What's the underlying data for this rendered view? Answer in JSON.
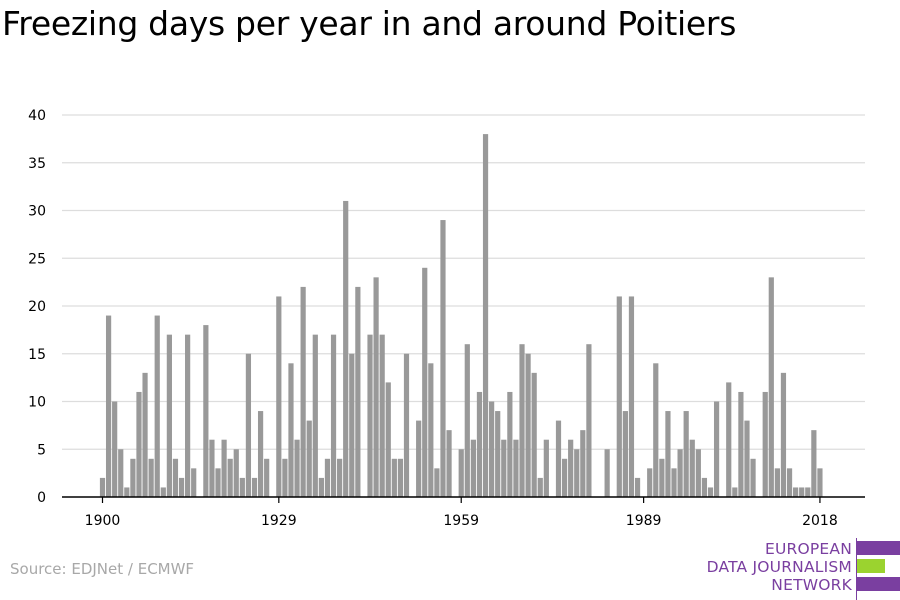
{
  "title": "Freezing days per year in and around Poitiers",
  "source": "Source: EDJNet / ECMWF",
  "logo": {
    "line1": "EUROPEAN",
    "line2": "DATA JOURNALISM",
    "line3": "NETWORK",
    "colors": {
      "text": "#7a3fa0",
      "bar_top": "#7a3fa0",
      "bar_mid": "#9bd32f",
      "bar_bottom": "#7a3fa0"
    }
  },
  "colors": {
    "bar": "#999999",
    "grid": "#dddddd",
    "axis": "#000000"
  },
  "chart_data": {
    "type": "bar",
    "title": "Freezing days per year in and around Poitiers",
    "xlabel": "",
    "ylabel": "",
    "ylim": [
      0,
      40
    ],
    "yticks": [
      "0",
      "5",
      "10",
      "15",
      "20",
      "25",
      "30",
      "35",
      "40"
    ],
    "xticks": [
      "1900",
      "1929",
      "1959",
      "1989",
      "2018"
    ],
    "grid": true,
    "x": [
      1900,
      1901,
      1902,
      1903,
      1904,
      1905,
      1906,
      1907,
      1908,
      1909,
      1910,
      1911,
      1912,
      1913,
      1914,
      1915,
      1916,
      1917,
      1918,
      1919,
      1920,
      1921,
      1922,
      1923,
      1924,
      1925,
      1926,
      1927,
      1928,
      1929,
      1930,
      1931,
      1932,
      1933,
      1934,
      1935,
      1936,
      1937,
      1938,
      1939,
      1940,
      1941,
      1942,
      1943,
      1944,
      1945,
      1946,
      1947,
      1948,
      1949,
      1950,
      1951,
      1952,
      1953,
      1954,
      1955,
      1956,
      1957,
      1958,
      1959,
      1960,
      1961,
      1962,
      1963,
      1964,
      1965,
      1966,
      1967,
      1968,
      1969,
      1970,
      1971,
      1972,
      1973,
      1974,
      1975,
      1976,
      1977,
      1978,
      1979,
      1980,
      1981,
      1982,
      1983,
      1984,
      1985,
      1986,
      1987,
      1988,
      1989,
      1990,
      1991,
      1992,
      1993,
      1994,
      1995,
      1996,
      1997,
      1998,
      1999,
      2000,
      2001,
      2002,
      2003,
      2004,
      2005,
      2006,
      2007,
      2008,
      2009,
      2010,
      2011,
      2012,
      2013,
      2014,
      2015,
      2016,
      2017,
      2018
    ],
    "values": [
      2,
      19,
      10,
      5,
      1,
      4,
      11,
      13,
      4,
      19,
      1,
      17,
      4,
      2,
      17,
      3,
      0,
      18,
      6,
      3,
      6,
      4,
      5,
      2,
      15,
      2,
      9,
      4,
      0,
      21,
      4,
      14,
      6,
      22,
      8,
      17,
      2,
      4,
      17,
      4,
      31,
      15,
      22,
      0,
      17,
      23,
      17,
      12,
      4,
      4,
      15,
      0,
      8,
      24,
      14,
      3,
      29,
      7,
      0,
      5,
      16,
      6,
      11,
      38,
      10,
      9,
      6,
      11,
      6,
      16,
      15,
      13,
      2,
      6,
      0,
      8,
      4,
      6,
      5,
      7,
      16,
      0,
      0,
      5,
      0,
      21,
      9,
      21,
      2,
      0,
      3,
      14,
      4,
      9,
      3,
      5,
      9,
      6,
      5,
      2,
      1,
      10,
      0,
      12,
      1,
      11,
      8,
      4,
      0,
      11,
      23,
      3,
      13,
      3,
      1,
      1,
      1,
      7,
      3
    ]
  }
}
